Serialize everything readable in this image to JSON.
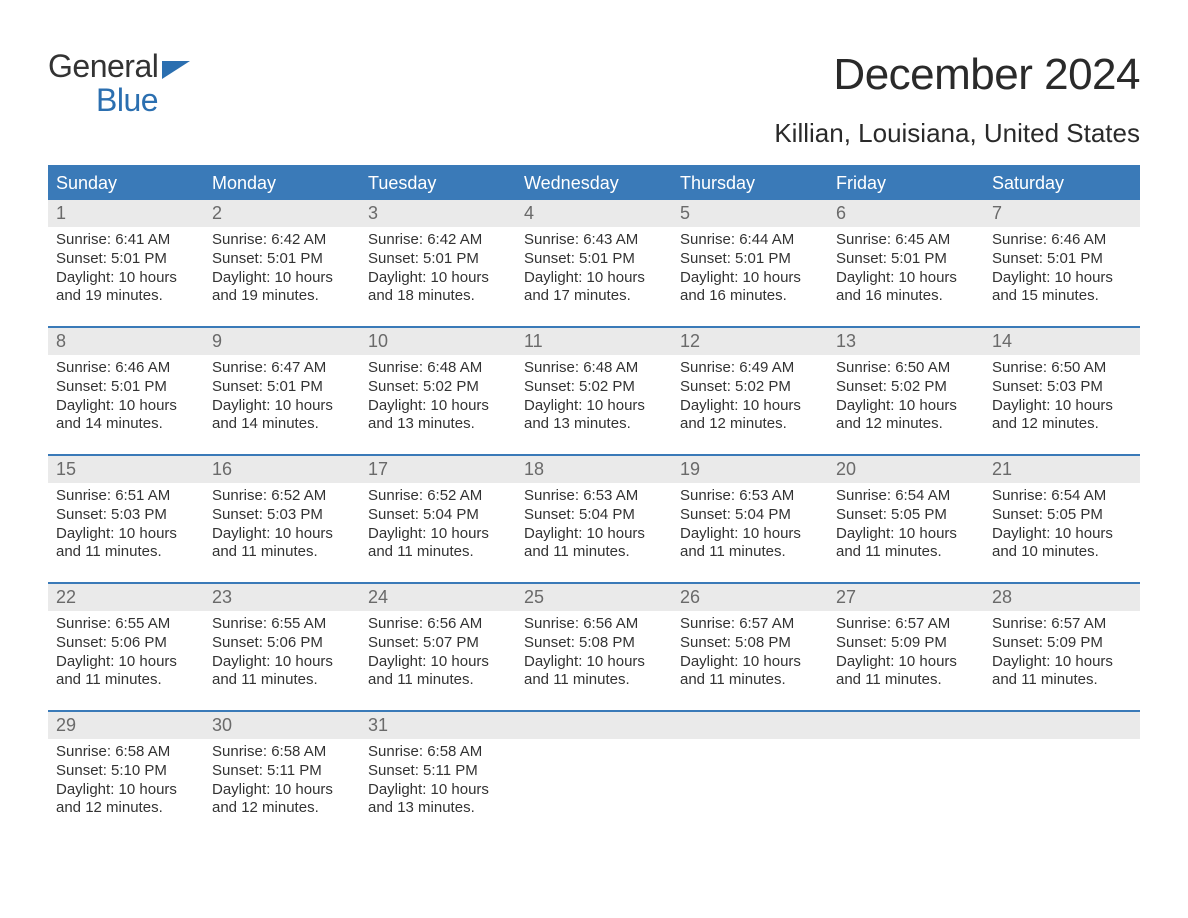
{
  "logo": {
    "line1": "General",
    "line2": "Blue"
  },
  "title": "December 2024",
  "location": "Killian, Louisiana, United States",
  "colors": {
    "header_bg": "#3a7ab8",
    "header_text": "#ffffff",
    "band_bg": "#eaeaea",
    "daynum_text": "#6a6a6a",
    "body_text": "#333333",
    "accent": "#2b6fb0",
    "page_bg": "#ffffff"
  },
  "dow": [
    "Sunday",
    "Monday",
    "Tuesday",
    "Wednesday",
    "Thursday",
    "Friday",
    "Saturday"
  ],
  "weeks": [
    [
      {
        "n": "1",
        "sunrise": "6:41 AM",
        "sunset": "5:01 PM",
        "daylight": "10 hours and 19 minutes."
      },
      {
        "n": "2",
        "sunrise": "6:42 AM",
        "sunset": "5:01 PM",
        "daylight": "10 hours and 19 minutes."
      },
      {
        "n": "3",
        "sunrise": "6:42 AM",
        "sunset": "5:01 PM",
        "daylight": "10 hours and 18 minutes."
      },
      {
        "n": "4",
        "sunrise": "6:43 AM",
        "sunset": "5:01 PM",
        "daylight": "10 hours and 17 minutes."
      },
      {
        "n": "5",
        "sunrise": "6:44 AM",
        "sunset": "5:01 PM",
        "daylight": "10 hours and 16 minutes."
      },
      {
        "n": "6",
        "sunrise": "6:45 AM",
        "sunset": "5:01 PM",
        "daylight": "10 hours and 16 minutes."
      },
      {
        "n": "7",
        "sunrise": "6:46 AM",
        "sunset": "5:01 PM",
        "daylight": "10 hours and 15 minutes."
      }
    ],
    [
      {
        "n": "8",
        "sunrise": "6:46 AM",
        "sunset": "5:01 PM",
        "daylight": "10 hours and 14 minutes."
      },
      {
        "n": "9",
        "sunrise": "6:47 AM",
        "sunset": "5:01 PM",
        "daylight": "10 hours and 14 minutes."
      },
      {
        "n": "10",
        "sunrise": "6:48 AM",
        "sunset": "5:02 PM",
        "daylight": "10 hours and 13 minutes."
      },
      {
        "n": "11",
        "sunrise": "6:48 AM",
        "sunset": "5:02 PM",
        "daylight": "10 hours and 13 minutes."
      },
      {
        "n": "12",
        "sunrise": "6:49 AM",
        "sunset": "5:02 PM",
        "daylight": "10 hours and 12 minutes."
      },
      {
        "n": "13",
        "sunrise": "6:50 AM",
        "sunset": "5:02 PM",
        "daylight": "10 hours and 12 minutes."
      },
      {
        "n": "14",
        "sunrise": "6:50 AM",
        "sunset": "5:03 PM",
        "daylight": "10 hours and 12 minutes."
      }
    ],
    [
      {
        "n": "15",
        "sunrise": "6:51 AM",
        "sunset": "5:03 PM",
        "daylight": "10 hours and 11 minutes."
      },
      {
        "n": "16",
        "sunrise": "6:52 AM",
        "sunset": "5:03 PM",
        "daylight": "10 hours and 11 minutes."
      },
      {
        "n": "17",
        "sunrise": "6:52 AM",
        "sunset": "5:04 PM",
        "daylight": "10 hours and 11 minutes."
      },
      {
        "n": "18",
        "sunrise": "6:53 AM",
        "sunset": "5:04 PM",
        "daylight": "10 hours and 11 minutes."
      },
      {
        "n": "19",
        "sunrise": "6:53 AM",
        "sunset": "5:04 PM",
        "daylight": "10 hours and 11 minutes."
      },
      {
        "n": "20",
        "sunrise": "6:54 AM",
        "sunset": "5:05 PM",
        "daylight": "10 hours and 11 minutes."
      },
      {
        "n": "21",
        "sunrise": "6:54 AM",
        "sunset": "5:05 PM",
        "daylight": "10 hours and 10 minutes."
      }
    ],
    [
      {
        "n": "22",
        "sunrise": "6:55 AM",
        "sunset": "5:06 PM",
        "daylight": "10 hours and 11 minutes."
      },
      {
        "n": "23",
        "sunrise": "6:55 AM",
        "sunset": "5:06 PM",
        "daylight": "10 hours and 11 minutes."
      },
      {
        "n": "24",
        "sunrise": "6:56 AM",
        "sunset": "5:07 PM",
        "daylight": "10 hours and 11 minutes."
      },
      {
        "n": "25",
        "sunrise": "6:56 AM",
        "sunset": "5:08 PM",
        "daylight": "10 hours and 11 minutes."
      },
      {
        "n": "26",
        "sunrise": "6:57 AM",
        "sunset": "5:08 PM",
        "daylight": "10 hours and 11 minutes."
      },
      {
        "n": "27",
        "sunrise": "6:57 AM",
        "sunset": "5:09 PM",
        "daylight": "10 hours and 11 minutes."
      },
      {
        "n": "28",
        "sunrise": "6:57 AM",
        "sunset": "5:09 PM",
        "daylight": "10 hours and 11 minutes."
      }
    ],
    [
      {
        "n": "29",
        "sunrise": "6:58 AM",
        "sunset": "5:10 PM",
        "daylight": "10 hours and 12 minutes."
      },
      {
        "n": "30",
        "sunrise": "6:58 AM",
        "sunset": "5:11 PM",
        "daylight": "10 hours and 12 minutes."
      },
      {
        "n": "31",
        "sunrise": "6:58 AM",
        "sunset": "5:11 PM",
        "daylight": "10 hours and 13 minutes."
      },
      null,
      null,
      null,
      null
    ]
  ],
  "labels": {
    "sunrise": "Sunrise: ",
    "sunset": "Sunset: ",
    "daylight": "Daylight: "
  }
}
